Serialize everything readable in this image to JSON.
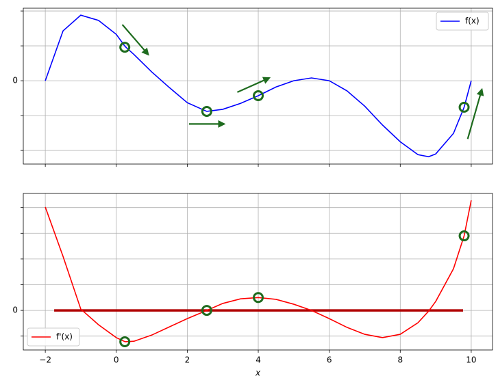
{
  "chart_data": [
    {
      "type": "line",
      "x": [
        -2,
        -1.5,
        -1,
        -0.5,
        0,
        0.25,
        0.5,
        1,
        1.5,
        2,
        2.55,
        3,
        3.5,
        4,
        4.5,
        5,
        5.5,
        6,
        6.5,
        7,
        7.5,
        8,
        8.5,
        8.8,
        9,
        9.5,
        9.8,
        10
      ],
      "series": [
        {
          "name": "f(x)",
          "color": "#0000ff",
          "values": [
            0,
            1.43,
            1.88,
            1.73,
            1.33,
            0.98,
            0.75,
            0.25,
            -0.2,
            -0.63,
            -0.88,
            -0.82,
            -0.65,
            -0.43,
            -0.18,
            0,
            0.08,
            0,
            -0.29,
            -0.73,
            -1.27,
            -1.75,
            -2.12,
            -2.18,
            -2.1,
            -1.51,
            -0.76,
            0
          ]
        }
      ],
      "points": {
        "x": [
          0.24,
          2.55,
          4,
          9.8
        ],
        "y": [
          0.96,
          -0.88,
          -0.43,
          -0.76
        ],
        "color": "#1e6b1e"
      },
      "arrows": [
        {
          "x": [
            0.17,
            0.9
          ],
          "y": [
            1.61,
            0.75
          ]
        },
        {
          "x": [
            2.05,
            3.04
          ],
          "y": [
            -1.24,
            -1.24
          ]
        },
        {
          "x": [
            3.41,
            4.31
          ],
          "y": [
            -0.33,
            0.08
          ]
        },
        {
          "x": [
            9.9,
            10.3
          ],
          "y": [
            -1.67,
            -0.25
          ]
        }
      ],
      "arrow_color": "#1e6b1e",
      "xlim": [
        -2.62,
        10.6
      ],
      "ylim": [
        -2.39,
        2.08
      ],
      "xticks": [
        {
          "value": -2,
          "label": "−2"
        },
        0,
        2,
        4,
        6,
        8,
        10
      ],
      "show_xtick_labels": false,
      "yticks": [
        0
      ],
      "unlabeled_yticks": [
        -2,
        -1,
        1,
        2
      ],
      "grid": true,
      "legend": "upper right"
    },
    {
      "type": "line",
      "x": [
        -2,
        -1.5,
        -1,
        -0.5,
        0,
        0.25,
        0.5,
        1,
        1.5,
        2,
        2.55,
        3,
        3.5,
        4,
        4.5,
        5,
        5.5,
        6,
        6.5,
        7,
        7.5,
        8,
        8.5,
        8.8,
        9,
        9.5,
        9.8,
        10
      ],
      "series": [
        {
          "name": "f'(x)",
          "color": "#ff0000",
          "values": [
            4.02,
            2.1,
            0.05,
            -0.56,
            -1.06,
            -1.22,
            -1.2,
            -0.96,
            -0.64,
            -0.32,
            0,
            0.27,
            0.45,
            0.5,
            0.43,
            0.24,
            0,
            -0.32,
            -0.66,
            -0.93,
            -1.06,
            -0.93,
            -0.48,
            -0.03,
            0.35,
            1.62,
            2.9,
            4.28
          ]
        }
      ],
      "points": {
        "x": [
          0.24,
          2.55,
          4,
          9.8
        ],
        "y": [
          -1.22,
          0,
          0.5,
          2.9
        ],
        "color": "#1e6b1e"
      },
      "hline": {
        "y": 0,
        "x": [
          -1.75,
          9.77
        ],
        "color": "#b00000"
      },
      "xlim": [
        -2.62,
        10.6
      ],
      "ylim": [
        -1.54,
        4.55
      ],
      "xticks": [
        {
          "value": -2,
          "label": "−2"
        },
        0,
        2,
        4,
        6,
        8,
        10
      ],
      "show_xtick_labels": true,
      "yticks": [
        0
      ],
      "unlabeled_yticks": [
        -1,
        1,
        2,
        3,
        4
      ],
      "xlabel": "x",
      "grid": true,
      "legend": "lower left"
    }
  ]
}
